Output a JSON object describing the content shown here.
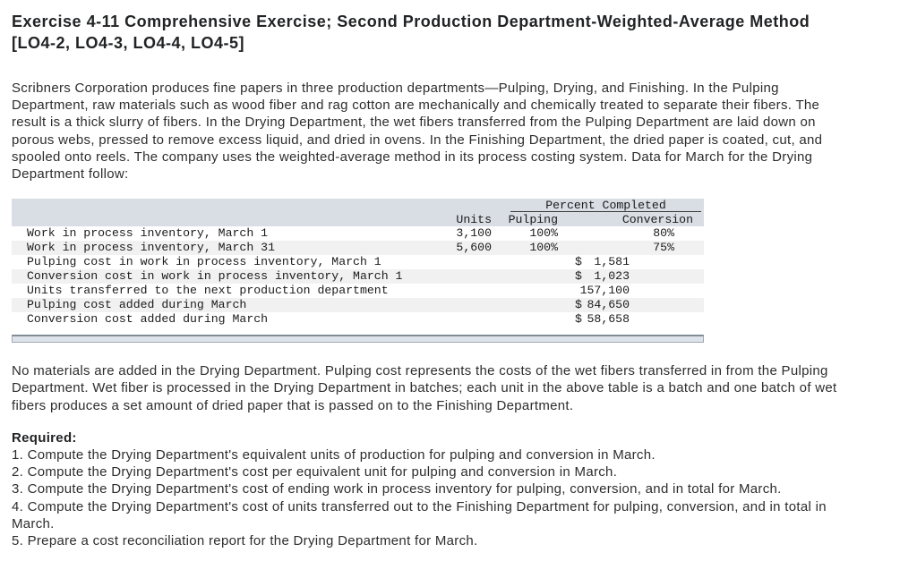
{
  "title": {
    "line1": "Exercise 4-11 Comprehensive Exercise; Second Production Department-Weighted-Average Method",
    "line2": "[LO4-2, LO4-3, LO4-4, LO4-5]"
  },
  "intro": "Scribners Corporation produces fine papers in three production departments—Pulping, Drying, and Finishing. In the Pulping\nDepartment, raw materials such as wood fiber and rag cotton are mechanically and chemically treated to separate their fibers. The\nresult is a thick slurry of fibers. In the Drying Department, the wet fibers transferred from the Pulping Department are laid down on\nporous webs, pressed to remove excess liquid, and dried in ovens. In the Finishing Department, the dried paper is coated, cut, and\nspooled onto reels. The company uses the weighted-average method in its process costing system. Data for March for the Drying\nDepartment follow:",
  "data_table": {
    "group_header": "Percent Completed",
    "columns": {
      "units": "Units",
      "pulping": "Pulping",
      "conversion": "Conversion"
    },
    "rows": [
      {
        "label": "Work in process inventory, March 1",
        "units": "3,100",
        "pulping": "100%",
        "conversion": "80%"
      },
      {
        "label": "Work in process inventory, March 31",
        "units": "5,600",
        "pulping": "100%",
        "conversion": "75%"
      },
      {
        "label": "Pulping cost in work in process inventory, March 1",
        "currency": "$",
        "amount": "1,581"
      },
      {
        "label": "Conversion cost in work in process inventory, March 1",
        "currency": "$",
        "amount": "1,023"
      },
      {
        "label": "Units transferred to the next production department",
        "amount": "157,100"
      },
      {
        "label": "Pulping cost added during March",
        "currency": "$",
        "amount": "84,650"
      },
      {
        "label": "Conversion cost added during March",
        "currency": "$",
        "amount": "58,658"
      }
    ]
  },
  "note": "No materials are added in the Drying Department. Pulping cost represents the costs of the wet fibers transferred in from the Pulping\nDepartment. Wet fiber is processed in the Drying Department in batches; each unit in the above table is a batch and one batch of wet\nfibers produces a set amount of dried paper that is passed on to the Finishing Department.",
  "required": {
    "label": "Required:",
    "items": [
      "1. Compute the Drying Department's equivalent units of production for pulping and conversion in March.",
      "2. Compute the Drying Department's cost per equivalent unit for pulping and conversion in March.",
      "3. Compute the Drying Department's cost of ending work in process inventory for pulping, conversion, and in total for March.",
      "4. Compute the Drying Department's cost of units transferred out to the Finishing Department for pulping, conversion, and in total in\nMarch.",
      "5. Prepare a cost reconciliation report for the Drying Department for March."
    ]
  },
  "colors": {
    "table_header_bg": "#d9dee5",
    "table_stripe": "#f1f1f1",
    "scrollbar_track": "#dde3ea",
    "body_text": "#2d2d2d"
  }
}
